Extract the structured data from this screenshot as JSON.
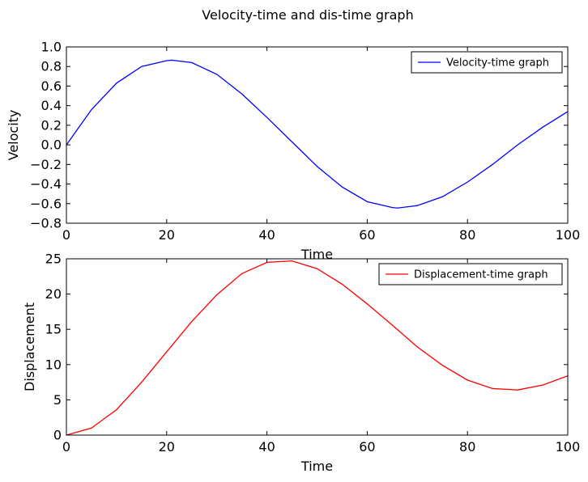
{
  "figure": {
    "title": "Velocity-time and dis-time graph"
  },
  "chart_data": [
    {
      "type": "line",
      "title": "",
      "xlabel": "Time",
      "ylabel": "Velocity",
      "xlim": [
        0,
        100
      ],
      "ylim": [
        -0.8,
        1.0
      ],
      "xticks": [
        0,
        20,
        40,
        60,
        80,
        100
      ],
      "yticks": [
        -0.8,
        -0.6,
        -0.4,
        -0.2,
        0.0,
        0.2,
        0.4,
        0.6,
        0.8,
        1.0
      ],
      "xtick_labels": [
        "0",
        "20",
        "40",
        "60",
        "80",
        "100"
      ],
      "ytick_labels": [
        "−0.8",
        "−0.6",
        "−0.4",
        "−0.2",
        "0.0",
        "0.2",
        "0.4",
        "0.6",
        "0.8",
        "1.0"
      ],
      "grid": false,
      "legend": "top-right",
      "series": [
        {
          "name": "Velocity-time graph",
          "color": "#0000ff",
          "x": [
            0,
            5,
            10,
            15,
            20,
            21,
            25,
            30,
            35,
            40,
            45,
            50,
            55,
            60,
            65,
            66,
            70,
            75,
            80,
            85,
            90,
            95,
            100
          ],
          "y": [
            0.0,
            0.36,
            0.63,
            0.8,
            0.86,
            0.865,
            0.84,
            0.72,
            0.52,
            0.28,
            0.03,
            -0.22,
            -0.43,
            -0.58,
            -0.64,
            -0.645,
            -0.62,
            -0.53,
            -0.38,
            -0.2,
            0.0,
            0.18,
            0.34
          ]
        }
      ]
    },
    {
      "type": "line",
      "title": "",
      "xlabel": "Time",
      "ylabel": "Displacement",
      "xlim": [
        0,
        100
      ],
      "ylim": [
        0,
        25
      ],
      "xticks": [
        0,
        20,
        40,
        60,
        80,
        100
      ],
      "yticks": [
        0,
        5,
        10,
        15,
        20,
        25
      ],
      "xtick_labels": [
        "0",
        "20",
        "40",
        "60",
        "80",
        "100"
      ],
      "ytick_labels": [
        "0",
        "5",
        "10",
        "15",
        "20",
        "25"
      ],
      "grid": false,
      "legend": "top-right",
      "series": [
        {
          "name": "Displacement-time graph",
          "color": "#ff0000",
          "x": [
            0,
            5,
            10,
            15,
            20,
            25,
            30,
            35,
            40,
            45,
            50,
            55,
            60,
            65,
            70,
            75,
            80,
            85,
            90,
            95,
            100
          ],
          "y": [
            0.0,
            1.0,
            3.6,
            7.5,
            11.8,
            16.1,
            19.9,
            22.9,
            24.5,
            24.7,
            23.6,
            21.4,
            18.6,
            15.6,
            12.5,
            9.9,
            7.8,
            6.6,
            6.4,
            7.1,
            8.4
          ]
        }
      ]
    }
  ]
}
